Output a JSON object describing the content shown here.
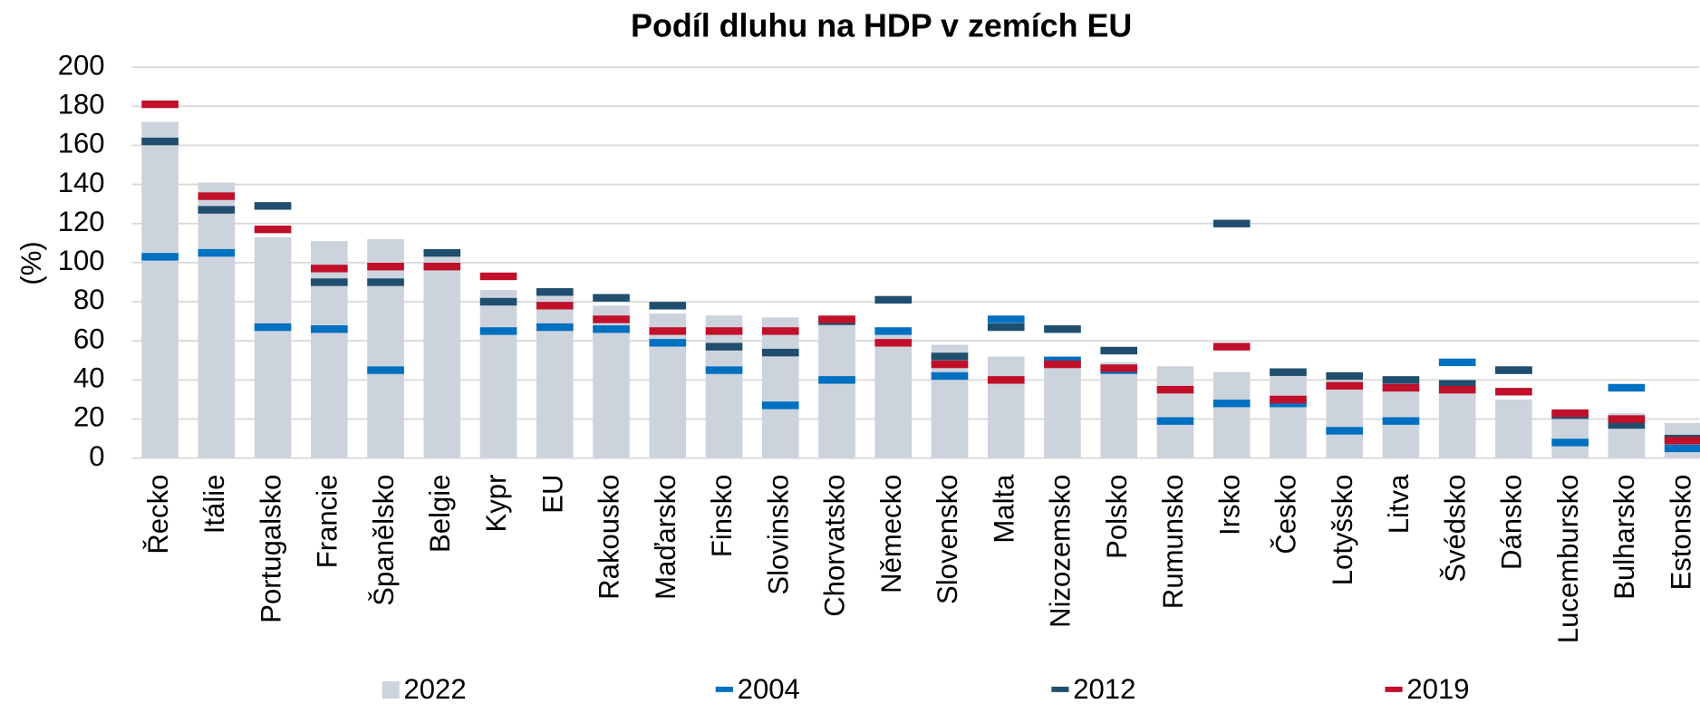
{
  "chart_data": {
    "type": "bar",
    "title": "Podíl dluhu na HDP v zemích EU",
    "y_label": "(%)",
    "categories": [
      "Řecko",
      "Itálie",
      "Portugalsko",
      "Francie",
      "Španělsko",
      "Belgie",
      "Kypr",
      "EU",
      "Rakousko",
      "Maďarsko",
      "Finsko",
      "Slovinsko",
      "Chorvatsko",
      "Německo",
      "Slovensko",
      "Malta",
      "Nizozemsko",
      "Polsko",
      "Rumunsko",
      "Irsko",
      "Česko",
      "Lotyšsko",
      "Litva",
      "Švédsko",
      "Dánsko",
      "Lucembursko",
      "Bulharsko",
      "Estonsko"
    ],
    "series": [
      {
        "name": "2022",
        "color": "#cdd3dd",
        "values": [
          172,
          141,
          113,
          111,
          112,
          105,
          86,
          84,
          78,
          74,
          73,
          72,
          68,
          66,
          58,
          52,
          51,
          49,
          47,
          44,
          44,
          41,
          38,
          33,
          30,
          24,
          23,
          18
        ]
      },
      {
        "name": "2004",
        "color": "#0070c0",
        "values": [
          103,
          105,
          67,
          66,
          45,
          null,
          65,
          67,
          66,
          59,
          45,
          27,
          40,
          65,
          42,
          71,
          50,
          45,
          19,
          28,
          28,
          14,
          19,
          49,
          45,
          8,
          36,
          5
        ]
      },
      {
        "name": "2012",
        "color": "#1f4e6e",
        "values": [
          162,
          127,
          129,
          90,
          90,
          105,
          80,
          85,
          82,
          78,
          57,
          54,
          70,
          81,
          52,
          67,
          66,
          55,
          null,
          120,
          44,
          42,
          40,
          38,
          45,
          22,
          17,
          10
        ]
      },
      {
        "name": "2019",
        "color": "#c0102a",
        "values": [
          181,
          134,
          117,
          97,
          98,
          98,
          93,
          78,
          71,
          65,
          65,
          65,
          71,
          59,
          48,
          40,
          48,
          46,
          35,
          57,
          30,
          37,
          36,
          35,
          34,
          23,
          20,
          9
        ]
      }
    ],
    "ylim": [
      0,
      200
    ],
    "yticks": [
      0,
      20,
      40,
      60,
      80,
      100,
      120,
      140,
      160,
      180,
      200
    ],
    "grid": true
  }
}
